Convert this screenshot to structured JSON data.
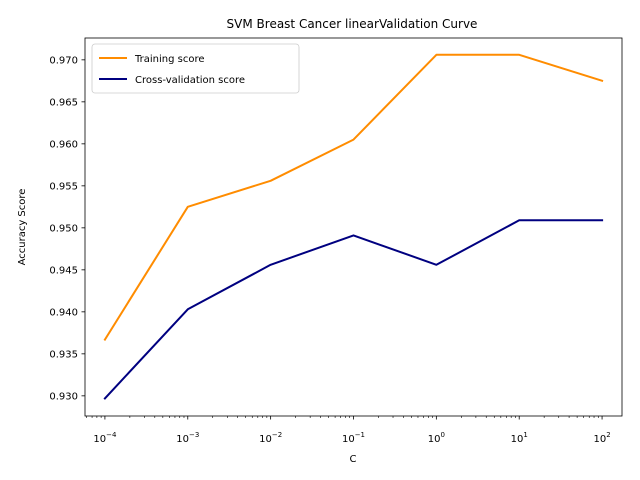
{
  "chart_data": {
    "type": "line",
    "title": "SVM Breast Cancer linearValidation Curve",
    "xlabel": "C",
    "ylabel": "Accuracy Score",
    "xscale": "log",
    "x": [
      0.0001,
      0.001,
      0.01,
      0.1,
      1,
      10,
      100
    ],
    "x_tick_labels": [
      {
        "base": "10",
        "exp": "−4"
      },
      {
        "base": "10",
        "exp": "−3"
      },
      {
        "base": "10",
        "exp": "−2"
      },
      {
        "base": "10",
        "exp": "−1"
      },
      {
        "base": "10",
        "exp": "0"
      },
      {
        "base": "10",
        "exp": "1"
      },
      {
        "base": "10",
        "exp": "2"
      }
    ],
    "xlim": [
      5.75e-05,
      174
    ],
    "ylim": [
      0.9276,
      0.9726
    ],
    "y_ticks": [
      0.93,
      0.935,
      0.94,
      0.945,
      0.95,
      0.955,
      0.96,
      0.965,
      0.97
    ],
    "y_tick_labels": [
      "0.930",
      "0.935",
      "0.940",
      "0.945",
      "0.950",
      "0.955",
      "0.960",
      "0.965",
      "0.970"
    ],
    "grid": false,
    "legend_position": "top-left",
    "series": [
      {
        "name": "Training score",
        "color": "#ff8c00",
        "values": [
          0.9367,
          0.9525,
          0.9556,
          0.9605,
          0.9706,
          0.9706,
          0.9675
        ]
      },
      {
        "name": "Cross-validation score",
        "color": "#000080",
        "values": [
          0.9297,
          0.9403,
          0.9456,
          0.9491,
          0.9456,
          0.9509,
          0.9509
        ]
      }
    ]
  }
}
